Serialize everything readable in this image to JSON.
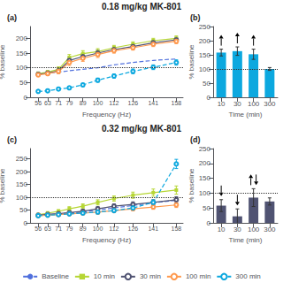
{
  "chart_data": [
    {
      "type": "line",
      "title": "0.18 mg/kg MK-801",
      "annotations": [
        "(a)"
      ],
      "x_label": "Frequency (Hz)",
      "y_label": "% baseline",
      "x": [
        56,
        63,
        71,
        79,
        89,
        100,
        112,
        126,
        141,
        158
      ],
      "xlim": [
        50,
        163
      ],
      "xticks": [
        56,
        63,
        71,
        79,
        89,
        100,
        112,
        126,
        141,
        158
      ],
      "ylim": [
        0,
        240
      ],
      "yticks": [
        0,
        50,
        100,
        150,
        200
      ],
      "grid": false,
      "legend": "bottom",
      "ref_line": 100,
      "series": [
        {
          "name": "Baseline",
          "values": [
            78,
            82,
            85,
            90,
            95,
            100,
            110,
            118,
            125,
            130
          ],
          "marker": "none",
          "line_style": "dashed"
        },
        {
          "name": "10 min",
          "values": [
            80,
            85,
            95,
            135,
            148,
            155,
            168,
            180,
            192,
            200
          ],
          "errors": [
            6,
            6,
            8,
            10,
            10,
            10,
            8,
            8,
            8,
            8
          ],
          "marker": "square",
          "line_style": "solid"
        },
        {
          "name": "30 min",
          "values": [
            78,
            82,
            90,
            125,
            138,
            150,
            162,
            172,
            185,
            195
          ],
          "errors": [
            6,
            6,
            8,
            10,
            10,
            10,
            8,
            8,
            8,
            8
          ],
          "marker": "open_circle",
          "line_style": "solid"
        },
        {
          "name": "100 min",
          "values": [
            76,
            80,
            88,
            118,
            132,
            145,
            158,
            168,
            180,
            190
          ],
          "errors": [
            6,
            6,
            8,
            10,
            10,
            10,
            8,
            8,
            8,
            8
          ],
          "marker": "open_circle",
          "line_style": "solid"
        },
        {
          "name": "300 min",
          "values": [
            20,
            22,
            28,
            32,
            42,
            58,
            72,
            88,
            102,
            118
          ],
          "errors": [
            4,
            4,
            5,
            5,
            6,
            7,
            7,
            8,
            8,
            9
          ],
          "marker": "open_circle",
          "line_style": "dashed"
        }
      ]
    },
    {
      "type": "bar",
      "annotations": [
        "(b)"
      ],
      "x_label": "Time (min)",
      "y_label": "% baseline",
      "categories": [
        "10",
        "30",
        "100",
        "300"
      ],
      "values": [
        158,
        163,
        152,
        100
      ],
      "errors": [
        12,
        15,
        18,
        5
      ],
      "arrows_up": [
        true,
        true,
        true,
        false
      ],
      "arrows_down": [
        false,
        false,
        false,
        false
      ],
      "ylim": [
        0,
        250
      ],
      "yticks": [
        0,
        50,
        100,
        150,
        200,
        250
      ],
      "grid": false,
      "ref_line": 100
    },
    {
      "type": "line",
      "title": "0.32 mg/kg MK-801",
      "annotations": [
        "(c)"
      ],
      "x_label": "Frequency (Hz)",
      "y_label": "% baseline",
      "x": [
        56,
        63,
        71,
        79,
        89,
        100,
        112,
        126,
        141,
        158
      ],
      "xlim": [
        50,
        163
      ],
      "xticks": [
        56,
        63,
        71,
        79,
        89,
        100,
        112,
        126,
        141,
        158
      ],
      "ylim": [
        0,
        290
      ],
      "yticks": [
        0,
        50,
        100,
        150,
        200,
        250
      ],
      "grid": false,
      "ref_line": 100,
      "series": [
        {
          "name": "Baseline",
          "values": [
            30,
            32,
            35,
            38,
            42,
            50,
            58,
            68,
            78,
            88
          ],
          "marker": "none",
          "line_style": "dashed"
        },
        {
          "name": "10 min",
          "values": [
            32,
            38,
            45,
            55,
            65,
            80,
            95,
            108,
            118,
            128
          ],
          "errors": [
            5,
            6,
            7,
            8,
            9,
            10,
            10,
            12,
            14,
            16
          ],
          "marker": "square",
          "line_style": "solid"
        },
        {
          "name": "30 min",
          "values": [
            30,
            33,
            36,
            40,
            45,
            55,
            65,
            72,
            80,
            90
          ],
          "errors": [
            5,
            5,
            6,
            7,
            7,
            8,
            9,
            10,
            10,
            12
          ],
          "marker": "open_circle",
          "line_style": "solid"
        },
        {
          "name": "100 min",
          "values": [
            28,
            30,
            32,
            35,
            38,
            42,
            48,
            55,
            62,
            70
          ],
          "errors": [
            4,
            4,
            5,
            5,
            6,
            7,
            7,
            8,
            9,
            10
          ],
          "marker": "open_circle",
          "line_style": "solid"
        },
        {
          "name": "300 min",
          "values": [
            28,
            30,
            32,
            35,
            38,
            42,
            48,
            58,
            80,
            230
          ],
          "errors": [
            4,
            4,
            5,
            5,
            6,
            7,
            7,
            8,
            10,
            18
          ],
          "marker": "open_circle",
          "line_style": "dashed"
        }
      ]
    },
    {
      "type": "bar",
      "annotations": [
        "(d)"
      ],
      "x_label": "Time (min)",
      "y_label": "% baseline",
      "categories": [
        "10",
        "30",
        "100",
        "300"
      ],
      "values": [
        58,
        22,
        85,
        72
      ],
      "errors": [
        20,
        25,
        30,
        12
      ],
      "arrows_up": [
        false,
        false,
        true,
        false
      ],
      "arrows_down": [
        true,
        true,
        true,
        false
      ],
      "ylim": [
        0,
        250
      ],
      "yticks": [
        0,
        50,
        100,
        150,
        200,
        250
      ],
      "grid": false,
      "ref_line": 100
    }
  ]
}
